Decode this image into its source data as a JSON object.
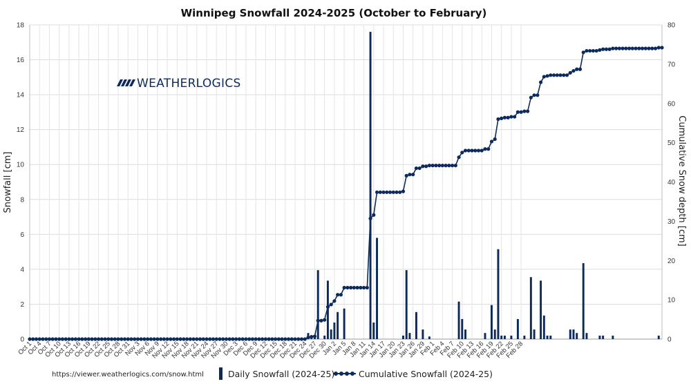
{
  "chart_data": {
    "type": "bar+line",
    "title": "Winnipeg Snowfall 2024-2025 (October to February)",
    "ylabel": "Snowfall [cm]",
    "y2label": "Cumulative Snow depth [cm]",
    "ylim": [
      0,
      18
    ],
    "y2lim": [
      0,
      80
    ],
    "yticks": [
      0,
      2,
      4,
      6,
      8,
      10,
      12,
      14,
      16,
      18
    ],
    "y2ticks": [
      0,
      10,
      20,
      30,
      40,
      50,
      60,
      70,
      80
    ],
    "grid": true,
    "legend_position": "bottom",
    "color": "#0d2a5c",
    "tick_labels": [
      "Oct 1",
      "Oct 4",
      "Oct 7",
      "Oct 10",
      "Oct 13",
      "Oct 16",
      "Oct 19",
      "Oct 22",
      "Oct 25",
      "Oct 28",
      "Oct 31",
      "Nov 3",
      "Nov 6",
      "Nov 9",
      "Nov 12",
      "Nov 15",
      "Nov 18",
      "Nov 21",
      "Nov 24",
      "Nov 27",
      "Nov 30",
      "Dec 3",
      "Dec 6",
      "Dec 9",
      "Dec 12",
      "Dec 15",
      "Dec 18",
      "Dec 21",
      "Dec 24",
      "Dec 27",
      "Dec 30",
      "Jan 2",
      "Jan 5",
      "Jan 8",
      "Jan 11",
      "Jan 14",
      "Jan 17",
      "Jan 20",
      "Jan 23",
      "Jan 26",
      "Jan 29",
      "Feb 1",
      "Feb 4",
      "Feb 7",
      "Feb 10",
      "Feb 13",
      "Feb 16",
      "Feb 19",
      "Feb 22",
      "Feb 25",
      "Feb 28"
    ],
    "series": [
      {
        "name": "Daily Snowfall  (2024-25)",
        "type": "bar",
        "values": [
          0,
          0,
          0,
          0,
          0,
          0,
          0,
          0,
          0,
          0,
          0,
          0,
          0,
          0,
          0,
          0,
          0,
          0,
          0,
          0,
          0,
          0,
          0,
          0,
          0,
          0,
          0,
          0,
          0,
          0,
          0,
          0,
          0,
          0,
          0,
          0,
          0,
          0,
          0,
          0,
          0,
          0,
          0,
          0,
          0,
          0,
          0,
          0,
          0,
          0,
          0,
          0,
          0,
          0,
          0,
          0,
          0,
          0,
          0,
          0,
          0,
          0,
          0,
          0,
          0,
          0,
          0,
          0,
          0,
          0,
          0,
          0,
          0,
          0,
          0,
          0,
          0,
          0,
          0,
          0,
          0,
          0,
          0,
          0,
          0,
          0.35,
          0.2,
          0.1,
          3.95,
          0,
          0.2,
          3.35,
          0.55,
          0.95,
          1.55,
          0,
          1.75,
          0,
          0,
          0,
          0,
          0,
          0,
          0,
          17.6,
          0.95,
          5.8,
          0,
          0,
          0,
          0,
          0,
          0,
          0,
          0.2,
          3.95,
          0.35,
          0,
          1.55,
          0,
          0.55,
          0,
          0.15,
          0,
          0,
          0,
          0,
          0,
          0,
          0,
          0,
          2.15,
          1.15,
          0.55,
          0,
          0,
          0,
          0,
          0,
          0.35,
          0,
          1.95,
          0.55,
          5.15,
          0.2,
          0.2,
          0,
          0.2,
          0,
          1.15,
          0,
          0.2,
          0,
          3.55,
          0.55,
          0,
          3.35,
          1.35,
          0.2,
          0.2,
          0,
          0,
          0,
          0,
          0,
          0.55,
          0.55,
          0.35,
          0,
          4.35,
          0.35,
          0,
          0,
          0,
          0.2,
          0.2,
          0,
          0,
          0.2,
          0,
          0,
          0,
          0,
          0,
          0,
          0,
          0,
          0,
          0,
          0,
          0,
          0,
          0.2,
          0
        ]
      },
      {
        "name": "Cumulative Snowfall (2024-25)",
        "type": "line",
        "values": [
          0,
          0,
          0,
          0,
          0,
          0,
          0,
          0,
          0,
          0,
          0,
          0,
          0,
          0,
          0,
          0,
          0,
          0,
          0,
          0,
          0,
          0,
          0,
          0,
          0,
          0,
          0,
          0,
          0,
          0,
          0,
          0,
          0,
          0,
          0,
          0,
          0,
          0,
          0,
          0,
          0,
          0,
          0,
          0,
          0,
          0,
          0,
          0,
          0,
          0,
          0,
          0,
          0,
          0,
          0,
          0,
          0,
          0,
          0,
          0,
          0,
          0,
          0,
          0,
          0,
          0,
          0,
          0,
          0,
          0,
          0,
          0,
          0,
          0,
          0,
          0,
          0,
          0,
          0,
          0,
          0,
          0,
          0,
          0,
          0,
          0.4,
          0.6,
          0.7,
          4.7,
          4.7,
          4.9,
          8.2,
          8.8,
          9.7,
          11.3,
          11.3,
          13.1,
          13.1,
          13.1,
          13.1,
          13.1,
          13.1,
          13.1,
          13.1,
          30.7,
          31.6,
          37.4,
          37.4,
          37.4,
          37.4,
          37.4,
          37.4,
          37.4,
          37.4,
          37.6,
          41.6,
          41.9,
          41.9,
          43.5,
          43.5,
          44.0,
          44.0,
          44.2,
          44.2,
          44.2,
          44.2,
          44.2,
          44.2,
          44.2,
          44.2,
          44.2,
          46.3,
          47.5,
          48.0,
          48.0,
          48.0,
          48.0,
          48.0,
          48.0,
          48.4,
          48.4,
          50.3,
          50.9,
          56.0,
          56.2,
          56.4,
          56.4,
          56.6,
          56.6,
          57.8,
          57.8,
          58.0,
          58.0,
          61.5,
          62.1,
          62.1,
          65.4,
          66.8,
          67.0,
          67.2,
          67.2,
          67.2,
          67.2,
          67.2,
          67.2,
          67.8,
          68.3,
          68.7,
          68.7,
          73.0,
          73.4,
          73.4,
          73.4,
          73.4,
          73.6,
          73.8,
          73.8,
          73.8,
          74.0,
          74.0,
          74.0,
          74.0,
          74.0,
          74.0,
          74.0,
          74.0,
          74.0,
          74.0,
          74.0,
          74.0,
          74.0,
          74.0,
          74.2,
          74.2
        ]
      }
    ]
  },
  "logo": {
    "text": "WEATHERLOGICS"
  },
  "source": "https://viewer.weatherlogics.com/snow.html"
}
